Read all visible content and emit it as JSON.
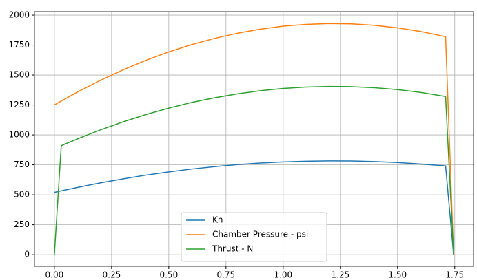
{
  "chart_data": {
    "type": "line",
    "x": [
      0,
      0.03,
      0.1,
      0.2,
      0.3,
      0.4,
      0.5,
      0.6,
      0.7,
      0.8,
      0.9,
      1.0,
      1.1,
      1.2,
      1.3,
      1.4,
      1.5,
      1.6,
      1.71,
      1.745
    ],
    "series": [
      {
        "name": "Kn",
        "color": "#1f77b4",
        "values": [
          520,
          533,
          561,
          599,
          633,
          664,
          691,
          715,
          735,
          752,
          765,
          774,
          780,
          783,
          782,
          777,
          769,
          757,
          741,
          0
        ]
      },
      {
        "name": "Chamber Pressure - psi",
        "color": "#ff7f0e",
        "values": [
          1250,
          1283,
          1357,
          1455,
          1543,
          1623,
          1693,
          1754,
          1806,
          1849,
          1883,
          1908,
          1923,
          1930,
          1927,
          1915,
          1894,
          1864,
          1820,
          0
        ]
      },
      {
        "name": "Thrust - N",
        "color": "#2ca02c",
        "values": [
          0,
          910,
          966,
          1041,
          1109,
          1170,
          1224,
          1271,
          1310,
          1343,
          1369,
          1388,
          1400,
          1405,
          1403,
          1394,
          1378,
          1355,
          1321,
          0
        ]
      }
    ],
    "xlim": [
      -0.087,
      1.832
    ],
    "xticks": [
      {
        "value": 0,
        "label": "0.00"
      },
      {
        "value": 0.25,
        "label": "0.25"
      },
      {
        "value": 0.5,
        "label": "0.50"
      },
      {
        "value": 0.75,
        "label": "0.75"
      },
      {
        "value": 1,
        "label": "1.00"
      },
      {
        "value": 1.25,
        "label": "1.25"
      },
      {
        "value": 1.5,
        "label": "1.50"
      },
      {
        "value": 1.75,
        "label": "1.75"
      }
    ],
    "ylim": [
      -97,
      2029
    ],
    "yticks": [
      0,
      250,
      500,
      750,
      1000,
      1250,
      1500,
      1750,
      2000
    ],
    "grid": true,
    "legend": "lower center"
  }
}
